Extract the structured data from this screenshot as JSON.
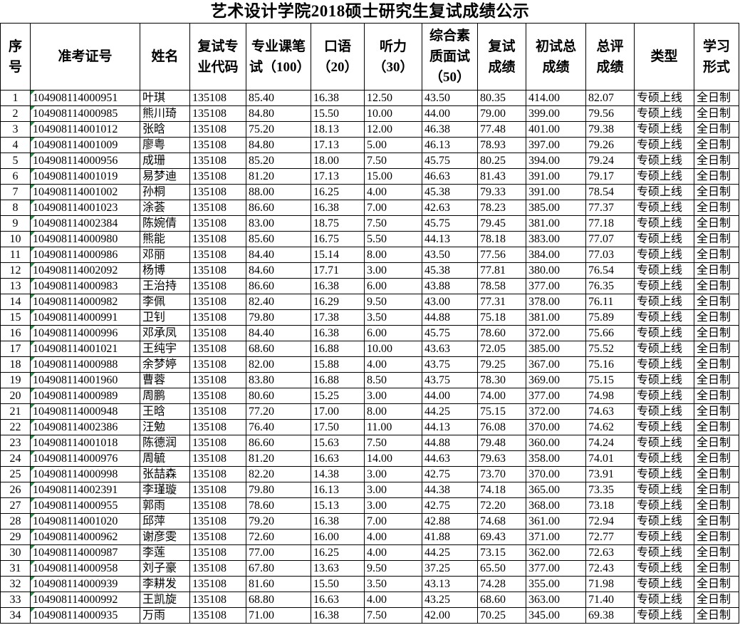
{
  "title": "艺术设计学院2018硕士研究生复试成绩公示",
  "headers": [
    "序号",
    "准考证号",
    "姓名",
    "复试专业代码",
    "专业课笔试（100）",
    "口语（20）",
    "听力（30）",
    "综合素质面试（50）",
    "复试成绩",
    "初试总成绩",
    "总评成绩",
    "类型",
    "学习形式"
  ],
  "rows": [
    [
      "1",
      "104908114000951",
      "叶琪",
      "135108",
      "85.40",
      "16.38",
      "12.50",
      "43.50",
      "80.35",
      "414.00",
      "82.07",
      "专硕上线",
      "全日制"
    ],
    [
      "2",
      "104908114000985",
      "熊川琦",
      "135108",
      "84.80",
      "15.50",
      "10.00",
      "44.00",
      "79.00",
      "399.00",
      "79.56",
      "专硕上线",
      "全日制"
    ],
    [
      "3",
      "104908114001012",
      "张晗",
      "135108",
      "75.20",
      "18.13",
      "12.00",
      "46.38",
      "77.48",
      "401.00",
      "79.38",
      "专硕上线",
      "全日制"
    ],
    [
      "4",
      "104908114001009",
      "廖粤",
      "135108",
      "84.80",
      "17.13",
      "5.00",
      "46.13",
      "78.93",
      "397.00",
      "79.26",
      "专硕上线",
      "全日制"
    ],
    [
      "5",
      "104908114000956",
      "成珊",
      "135108",
      "85.20",
      "18.00",
      "7.50",
      "45.75",
      "80.25",
      "394.00",
      "79.24",
      "专硕上线",
      "全日制"
    ],
    [
      "6",
      "104908114001019",
      "易梦迪",
      "135108",
      "81.20",
      "17.13",
      "15.00",
      "46.63",
      "81.43",
      "391.00",
      "79.17",
      "专硕上线",
      "全日制"
    ],
    [
      "7",
      "104908114001002",
      "孙桐",
      "135108",
      "88.00",
      "16.25",
      "4.00",
      "45.38",
      "79.33",
      "391.00",
      "78.54",
      "专硕上线",
      "全日制"
    ],
    [
      "8",
      "104908114001023",
      "涂荟",
      "135108",
      "86.60",
      "16.38",
      "7.00",
      "42.63",
      "78.23",
      "385.00",
      "77.37",
      "专硕上线",
      "全日制"
    ],
    [
      "9",
      "104908114002384",
      "陈婉倩",
      "135108",
      "83.00",
      "18.75",
      "7.50",
      "45.75",
      "79.45",
      "381.00",
      "77.18",
      "专硕上线",
      "全日制"
    ],
    [
      "10",
      "104908114000980",
      "熊能",
      "135108",
      "85.60",
      "16.75",
      "5.50",
      "44.13",
      "78.18",
      "383.00",
      "77.07",
      "专硕上线",
      "全日制"
    ],
    [
      "11",
      "104908114000986",
      "邓丽",
      "135108",
      "84.40",
      "15.14",
      "8.00",
      "43.50",
      "77.56",
      "384.00",
      "77.03",
      "专硕上线",
      "全日制"
    ],
    [
      "12",
      "104908114002092",
      "杨博",
      "135108",
      "84.60",
      "17.71",
      "3.00",
      "45.38",
      "77.81",
      "380.00",
      "76.54",
      "专硕上线",
      "全日制"
    ],
    [
      "13",
      "104908114000983",
      "王治持",
      "135108",
      "86.60",
      "16.38",
      "6.00",
      "43.88",
      "78.58",
      "377.00",
      "76.35",
      "专硕上线",
      "全日制"
    ],
    [
      "14",
      "104908114000982",
      "李佩",
      "135108",
      "82.40",
      "16.29",
      "9.50",
      "43.00",
      "77.31",
      "378.00",
      "76.11",
      "专硕上线",
      "全日制"
    ],
    [
      "15",
      "104908114000991",
      "卫钊",
      "135108",
      "79.80",
      "17.38",
      "3.50",
      "44.88",
      "75.18",
      "381.00",
      "75.89",
      "专硕上线",
      "全日制"
    ],
    [
      "16",
      "104908114000996",
      "邓承凤",
      "135108",
      "84.40",
      "16.38",
      "6.00",
      "45.75",
      "78.60",
      "372.00",
      "75.66",
      "专硕上线",
      "全日制"
    ],
    [
      "17",
      "104908114001021",
      "王纯宇",
      "135108",
      "68.60",
      "16.88",
      "10.00",
      "43.63",
      "72.05",
      "385.00",
      "75.52",
      "专硕上线",
      "全日制"
    ],
    [
      "18",
      "104908114000988",
      "余梦婷",
      "135108",
      "82.00",
      "15.88",
      "4.00",
      "43.75",
      "79.25",
      "367.00",
      "75.16",
      "专硕上线",
      "全日制"
    ],
    [
      "19",
      "104908114001960",
      "曹蓉",
      "135108",
      "83.80",
      "16.88",
      "8.50",
      "43.75",
      "78.30",
      "369.00",
      "75.15",
      "专硕上线",
      "全日制"
    ],
    [
      "20",
      "104908114000989",
      "周鹏",
      "135108",
      "80.60",
      "15.25",
      "3.00",
      "44.00",
      "74.00",
      "377.00",
      "74.98",
      "专硕上线",
      "全日制"
    ],
    [
      "21",
      "104908114000948",
      "王晗",
      "135108",
      "77.20",
      "17.00",
      "8.00",
      "44.25",
      "75.15",
      "372.00",
      "74.63",
      "专硕上线",
      "全日制"
    ],
    [
      "22",
      "104908114002386",
      "汪勉",
      "135108",
      "76.40",
      "17.50",
      "11.00",
      "44.13",
      "76.08",
      "370.00",
      "74.62",
      "专硕上线",
      "全日制"
    ],
    [
      "23",
      "104908114001018",
      "陈德润",
      "135108",
      "86.60",
      "15.63",
      "7.50",
      "44.88",
      "79.48",
      "360.00",
      "74.24",
      "专硕上线",
      "全日制"
    ],
    [
      "24",
      "104908114000976",
      "周毓",
      "135108",
      "81.20",
      "16.63",
      "14.00",
      "44.63",
      "79.63",
      "358.00",
      "74.01",
      "专硕上线",
      "全日制"
    ],
    [
      "25",
      "104908114000998",
      "张喆森",
      "135108",
      "82.20",
      "14.38",
      "3.00",
      "42.75",
      "73.70",
      "370.00",
      "73.91",
      "专硕上线",
      "全日制"
    ],
    [
      "26",
      "104908114002391",
      "李瑾璇",
      "135108",
      "79.80",
      "16.13",
      "3.00",
      "44.38",
      "74.18",
      "365.00",
      "73.35",
      "专硕上线",
      "全日制"
    ],
    [
      "27",
      "104908114000955",
      "郭雨",
      "135108",
      "78.60",
      "15.13",
      "3.00",
      "42.75",
      "72.20",
      "368.00",
      "73.18",
      "专硕上线",
      "全日制"
    ],
    [
      "28",
      "104908114001020",
      "邱萍",
      "135108",
      "79.20",
      "16.38",
      "7.00",
      "42.88",
      "74.68",
      "361.00",
      "72.94",
      "专硕上线",
      "全日制"
    ],
    [
      "29",
      "104908114000962",
      "谢彦雯",
      "135108",
      "72.60",
      "16.00",
      "4.00",
      "41.88",
      "69.43",
      "371.00",
      "72.77",
      "专硕上线",
      "全日制"
    ],
    [
      "30",
      "104908114000987",
      "李莲",
      "135108",
      "77.00",
      "16.25",
      "4.00",
      "44.25",
      "73.15",
      "362.00",
      "72.63",
      "专硕上线",
      "全日制"
    ],
    [
      "31",
      "104908114000958",
      "刘子豪",
      "135108",
      "67.80",
      "13.63",
      "9.50",
      "37.25",
      "65.50",
      "377.00",
      "72.43",
      "专硕上线",
      "全日制"
    ],
    [
      "32",
      "104908114000939",
      "李耕发",
      "135108",
      "81.60",
      "15.50",
      "3.50",
      "43.13",
      "74.28",
      "355.00",
      "71.98",
      "专硕上线",
      "全日制"
    ],
    [
      "33",
      "104908114000992",
      "王凯旋",
      "135108",
      "68.80",
      "16.63",
      "4.00",
      "43.25",
      "68.60",
      "363.00",
      "71.40",
      "专硕上线",
      "全日制"
    ],
    [
      "34",
      "104908114000935",
      "万雨",
      "135108",
      "71.00",
      "16.38",
      "7.50",
      "42.00",
      "70.25",
      "345.00",
      "69.38",
      "专硕上线",
      "全日制"
    ]
  ]
}
